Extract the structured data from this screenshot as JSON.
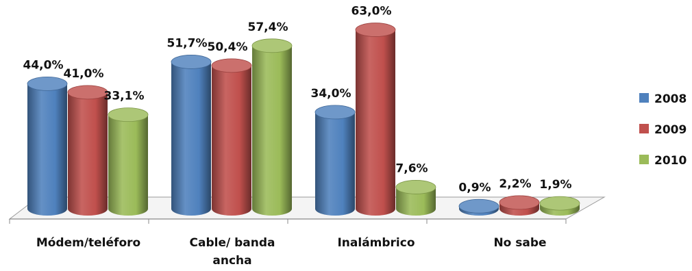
{
  "chart_data": {
    "type": "bar",
    "style": "3d-cylinder",
    "categories": [
      "Módem/teléforo",
      "Cable/ banda ancha",
      "Inalámbrico",
      "No sabe"
    ],
    "series": [
      {
        "name": "2008",
        "color": "#4f81bd",
        "values": [
          44.0,
          51.7,
          34.0,
          0.9
        ],
        "labels": [
          "44,0%",
          "51,7%",
          "34,0%",
          "0,9%"
        ]
      },
      {
        "name": "2009",
        "color": "#c0504d",
        "values": [
          41.0,
          50.4,
          63.0,
          2.2
        ],
        "labels": [
          "41,0%",
          "50,4%",
          "63,0%",
          "2,2%"
        ]
      },
      {
        "name": "2010",
        "color": "#9bbb59",
        "values": [
          33.1,
          57.4,
          7.6,
          1.9
        ],
        "labels": [
          "33,1%",
          "57,4%",
          "7,6%",
          "1,9%"
        ]
      }
    ],
    "ylim": [
      0,
      70
    ],
    "grid": false,
    "legend_position": "right"
  }
}
